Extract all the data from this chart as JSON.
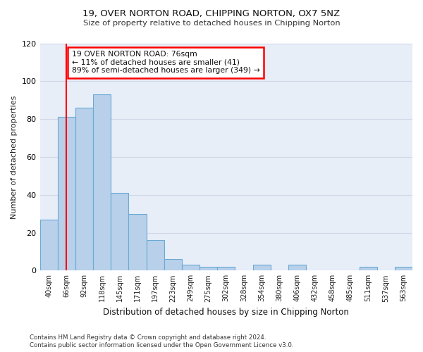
{
  "title_line1": "19, OVER NORTON ROAD, CHIPPING NORTON, OX7 5NZ",
  "title_line2": "Size of property relative to detached houses in Chipping Norton",
  "xlabel": "Distribution of detached houses by size in Chipping Norton",
  "ylabel": "Number of detached properties",
  "bin_labels": [
    "40sqm",
    "66sqm",
    "92sqm",
    "118sqm",
    "145sqm",
    "171sqm",
    "197sqm",
    "223sqm",
    "249sqm",
    "275sqm",
    "302sqm",
    "328sqm",
    "354sqm",
    "380sqm",
    "406sqm",
    "432sqm",
    "458sqm",
    "485sqm",
    "511sqm",
    "537sqm",
    "563sqm"
  ],
  "bar_values": [
    27,
    81,
    86,
    93,
    41,
    30,
    16,
    6,
    3,
    2,
    2,
    0,
    3,
    0,
    3,
    0,
    0,
    0,
    2,
    0,
    2
  ],
  "bar_color": "#b8d0ea",
  "bar_edge_color": "#6aaad4",
  "grid_color": "#d0d8e8",
  "red_line_x": 1.0,
  "annotation_text": "19 OVER NORTON ROAD: 76sqm\n← 11% of detached houses are smaller (41)\n89% of semi-detached houses are larger (349) →",
  "annotation_box_color": "white",
  "annotation_border_color": "red",
  "ylim": [
    0,
    120
  ],
  "yticks": [
    0,
    20,
    40,
    60,
    80,
    100,
    120
  ],
  "footnote1": "Contains HM Land Registry data © Crown copyright and database right 2024.",
  "footnote2": "Contains public sector information licensed under the Open Government Licence v3.0.",
  "fig_bg_color": "#ffffff",
  "ax_bg_color": "#e8eef8"
}
